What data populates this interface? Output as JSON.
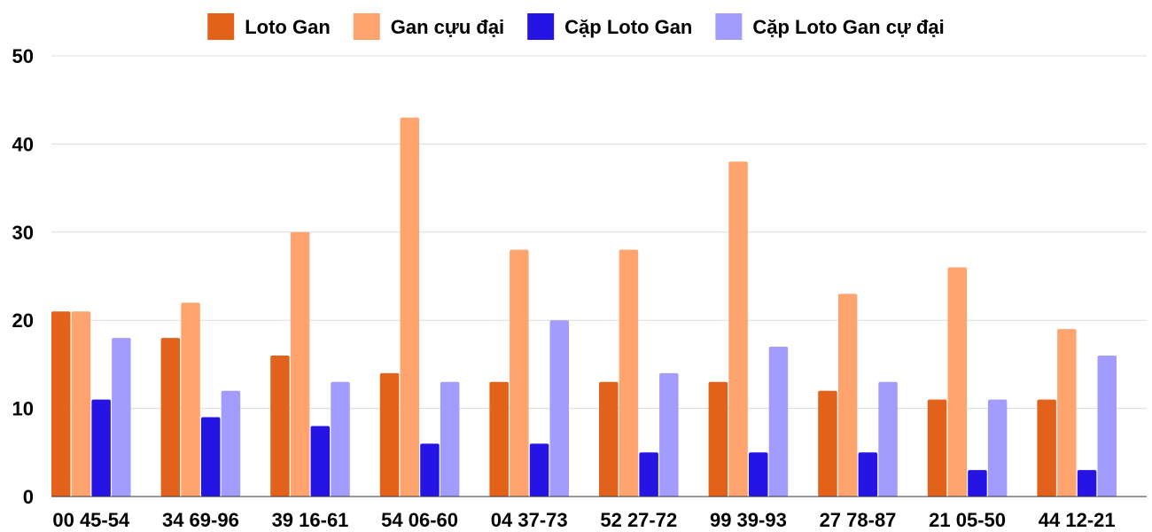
{
  "chart_data": {
    "type": "bar",
    "title": "",
    "xlabel": "",
    "ylabel": "",
    "ylim": [
      0,
      50
    ],
    "yticks": [
      0,
      10,
      20,
      30,
      40,
      50
    ],
    "grid": true,
    "legend_position": "top-center",
    "categories": [
      "00 45-54",
      "34 69-96",
      "39 16-61",
      "54 06-60",
      "04 37-73",
      "52 27-72",
      "99 39-93",
      "27 78-87",
      "21 05-50",
      "44 12-21"
    ],
    "series": [
      {
        "name": "Loto Gan",
        "color": "#e2621b",
        "values": [
          21,
          18,
          16,
          14,
          13,
          13,
          13,
          12,
          11,
          11
        ]
      },
      {
        "name": "Gan cựu đại",
        "color": "#ffa46e",
        "values": [
          21,
          22,
          30,
          43,
          28,
          28,
          38,
          23,
          26,
          19
        ]
      },
      {
        "name": "Cặp Loto Gan",
        "color": "#2514e3",
        "values": [
          11,
          9,
          8,
          6,
          6,
          5,
          5,
          5,
          3,
          3
        ]
      },
      {
        "name": "Cặp Loto Gan cự đại",
        "color": "#a39cff",
        "values": [
          18,
          12,
          13,
          13,
          20,
          14,
          17,
          13,
          11,
          16
        ]
      }
    ]
  }
}
